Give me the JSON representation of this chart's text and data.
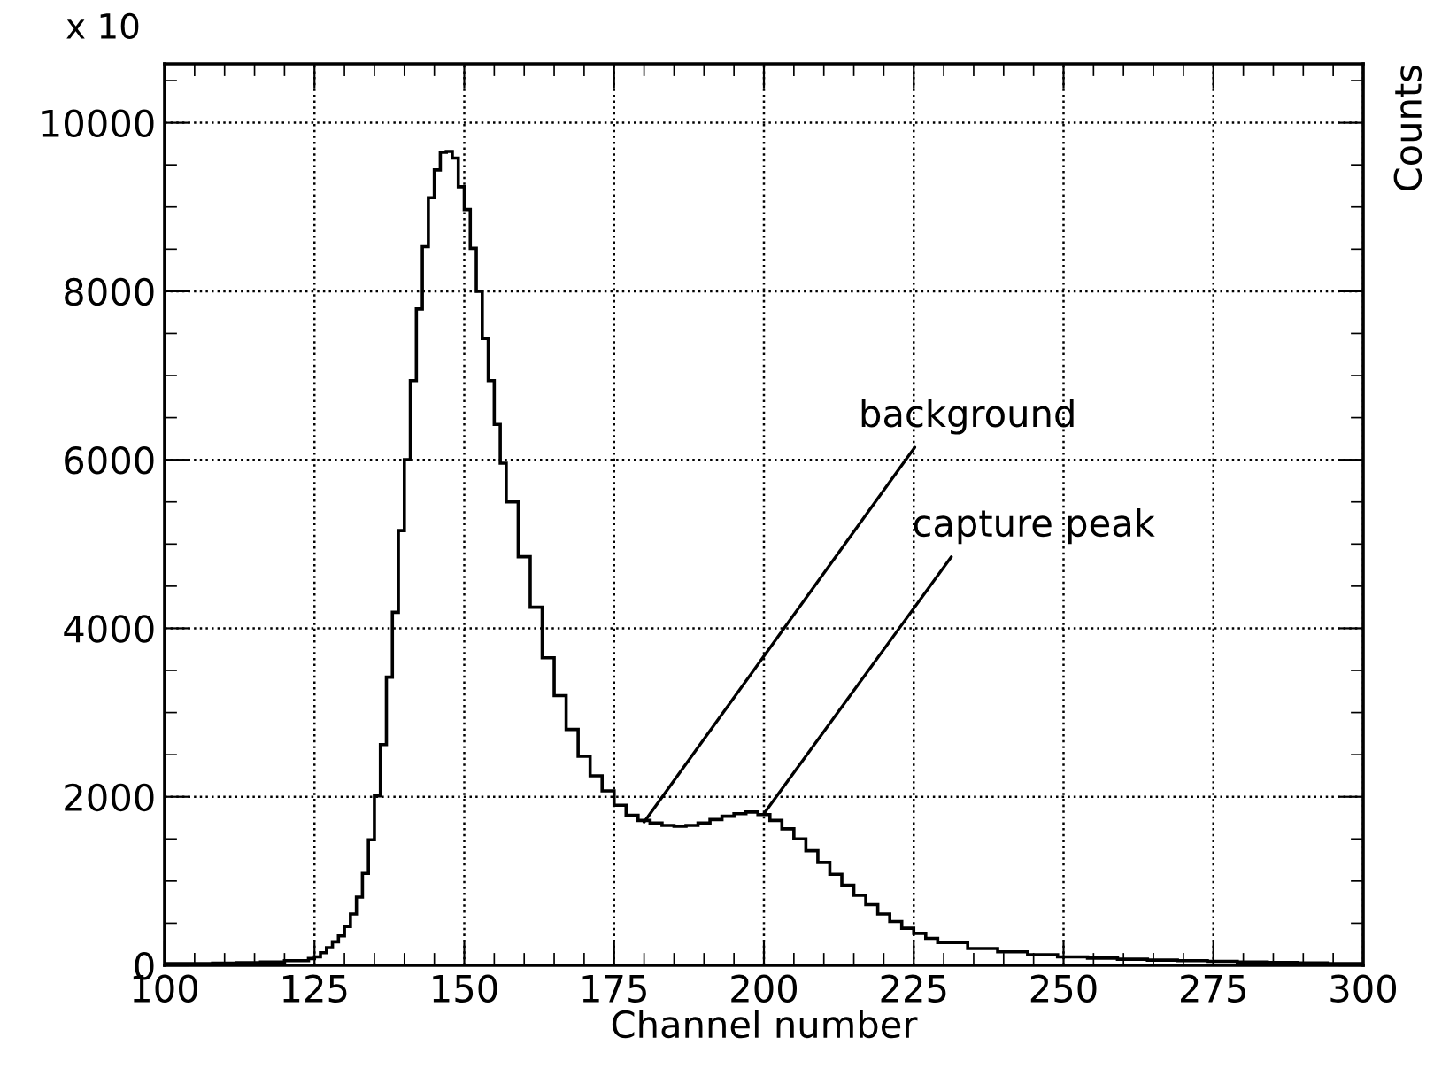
{
  "chart_data": {
    "type": "histogram",
    "xlabel": "Channel number",
    "y2label": "Counts",
    "bins": [
      100,
      104,
      108,
      112,
      116,
      120,
      124,
      125,
      126,
      127,
      128,
      129,
      130,
      131,
      132,
      133,
      134,
      135,
      136,
      137,
      138,
      139,
      140,
      141,
      142,
      143,
      144,
      145,
      146,
      147,
      148,
      149,
      150,
      151,
      152,
      153,
      154,
      155,
      156,
      157,
      159,
      161,
      163,
      165,
      167,
      169,
      171,
      173,
      175,
      177,
      179,
      181,
      183,
      185,
      187,
      189,
      191,
      193,
      195,
      197,
      199,
      201,
      203,
      205,
      207,
      209,
      211,
      213,
      215,
      217,
      219,
      221,
      223,
      225,
      227,
      229,
      234,
      239,
      244,
      249,
      254,
      259,
      264,
      269,
      274,
      279,
      284,
      289,
      294,
      299,
      300
    ],
    "values": [
      20,
      20,
      25,
      30,
      40,
      55,
      80,
      100,
      150,
      210,
      280,
      350,
      460,
      610,
      810,
      1090,
      1490,
      2010,
      2620,
      3420,
      4190,
      5160,
      6000,
      6940,
      7790,
      8530,
      9110,
      9440,
      9650,
      9660,
      9580,
      9240,
      8970,
      8510,
      8000,
      7440,
      6940,
      6420,
      5960,
      5500,
      4850,
      4250,
      3650,
      3200,
      2800,
      2480,
      2250,
      2070,
      1900,
      1780,
      1720,
      1690,
      1660,
      1650,
      1660,
      1690,
      1730,
      1770,
      1800,
      1820,
      1790,
      1720,
      1620,
      1500,
      1360,
      1220,
      1080,
      950,
      830,
      720,
      610,
      520,
      440,
      380,
      320,
      270,
      200,
      160,
      125,
      100,
      85,
      72,
      62,
      55,
      48,
      40,
      34,
      28,
      22,
      20
    ],
    "color": "#000000",
    "xlim": [
      100,
      300
    ],
    "xticks": [
      100,
      125,
      150,
      175,
      200,
      225,
      250,
      275,
      300
    ],
    "ylim": [
      0,
      10700
    ],
    "yticks": [
      0,
      2000,
      4000,
      6000,
      8000,
      10000
    ],
    "grid": true,
    "annotations": [
      "x 10",
      {
        "text": "background",
        "x": 180,
        "y": 1700
      },
      {
        "text": "capture peak",
        "x": 200,
        "y": 1800
      }
    ]
  }
}
